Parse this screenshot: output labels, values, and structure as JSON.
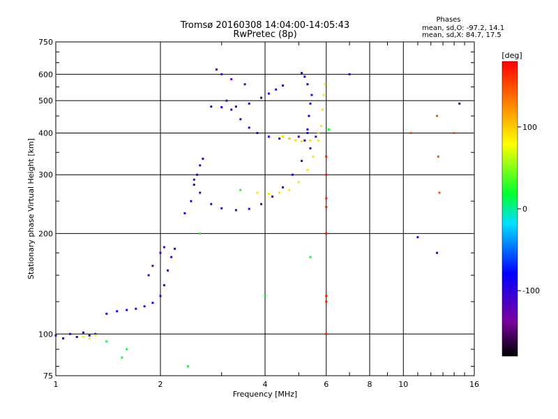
{
  "chart_data": {
    "type": "scatter",
    "title": "Tromsø 20160308 14:04:00-14:05:43",
    "subtitle": "RwPretec (8p)",
    "xlabel": "Frequency [MHz]",
    "ylabel": "Stationary phase Virtual Height [km]",
    "x_scale": "log",
    "y_scale": "log",
    "xlim": [
      1,
      16
    ],
    "ylim": [
      75,
      750
    ],
    "x_ticks": [
      1,
      2,
      4,
      6,
      8,
      10,
      16
    ],
    "y_ticks": [
      75,
      100,
      200,
      300,
      400,
      500,
      600,
      750
    ],
    "grid": true,
    "phase_box": {
      "heading": "Phases",
      "line_o": "mean, sd,O: -97.2, 14.1",
      "line_x": "mean, sd,X:  84.7, 17.5"
    },
    "colorbar": {
      "label": "[deg]",
      "ticks": [
        100,
        0,
        -100
      ],
      "range": [
        -180,
        180
      ]
    },
    "traces": [
      {
        "name": "",
        "color_phase": -97,
        "points": [
          [
            1.0,
            99
          ],
          [
            1.05,
            97
          ],
          [
            1.1,
            100
          ],
          [
            1.15,
            98
          ],
          [
            1.2,
            101
          ],
          [
            1.25,
            99
          ],
          [
            1.3,
            100
          ]
        ]
      },
      {
        "name": "",
        "color_phase": 84,
        "points": [
          [
            1.2,
            98
          ],
          [
            1.25,
            97
          ],
          [
            1.3,
            99
          ]
        ]
      },
      {
        "name": "",
        "color_phase": -100,
        "points": [
          [
            1.4,
            115
          ],
          [
            1.5,
            117
          ],
          [
            1.6,
            118
          ],
          [
            1.7,
            119
          ],
          [
            1.8,
            121
          ],
          [
            1.9,
            124
          ],
          [
            2.0,
            130
          ],
          [
            2.05,
            140
          ],
          [
            2.1,
            155
          ],
          [
            2.15,
            170
          ],
          [
            2.2,
            180
          ]
        ]
      },
      {
        "name": "",
        "color_phase": -110,
        "points": [
          [
            1.85,
            150
          ],
          [
            1.9,
            160
          ],
          [
            2.0,
            175
          ],
          [
            2.05,
            182
          ]
        ]
      },
      {
        "name": "",
        "color_phase": -95,
        "points": [
          [
            2.35,
            230
          ],
          [
            2.45,
            250
          ],
          [
            2.5,
            280
          ],
          [
            2.55,
            300
          ],
          [
            2.6,
            320
          ],
          [
            2.65,
            335
          ]
        ]
      },
      {
        "name": "",
        "color_phase": -105,
        "points": [
          [
            2.5,
            290
          ],
          [
            2.6,
            265
          ],
          [
            2.8,
            245
          ],
          [
            3.0,
            238
          ],
          [
            3.3,
            235
          ],
          [
            3.6,
            237
          ],
          [
            3.9,
            245
          ],
          [
            4.2,
            258
          ],
          [
            4.5,
            275
          ],
          [
            4.8,
            300
          ],
          [
            5.1,
            330
          ],
          [
            5.4,
            360
          ],
          [
            5.6,
            390
          ]
        ]
      },
      {
        "name": "",
        "color_phase": 90,
        "points": [
          [
            3.8,
            265
          ],
          [
            4.1,
            263
          ],
          [
            4.4,
            265
          ],
          [
            4.7,
            270
          ],
          [
            5.0,
            285
          ],
          [
            5.3,
            310
          ],
          [
            5.5,
            340
          ],
          [
            5.7,
            380
          ],
          [
            5.8,
            420
          ],
          [
            5.85,
            470
          ],
          [
            5.9,
            520
          ],
          [
            5.95,
            560
          ]
        ]
      },
      {
        "name": "",
        "color_phase": -100,
        "points": [
          [
            2.8,
            480
          ],
          [
            3.0,
            478
          ],
          [
            3.3,
            480
          ],
          [
            3.6,
            490
          ],
          [
            3.9,
            510
          ],
          [
            4.1,
            525
          ],
          [
            4.3,
            540
          ],
          [
            4.5,
            555
          ]
        ]
      },
      {
        "name": "",
        "color_phase": -100,
        "points": [
          [
            3.1,
            500
          ],
          [
            3.2,
            470
          ],
          [
            3.4,
            440
          ],
          [
            3.6,
            415
          ],
          [
            3.8,
            400
          ],
          [
            4.1,
            390
          ],
          [
            4.4,
            385
          ],
          [
            4.7,
            385
          ],
          [
            5.0,
            390
          ],
          [
            5.3,
            400
          ]
        ]
      },
      {
        "name": "",
        "color_phase": -90,
        "points": [
          [
            5.2,
            380
          ],
          [
            5.3,
            410
          ],
          [
            5.35,
            450
          ],
          [
            5.4,
            490
          ],
          [
            5.45,
            520
          ],
          [
            5.3,
            560
          ],
          [
            5.2,
            590
          ],
          [
            5.1,
            605
          ]
        ]
      },
      {
        "name": "",
        "color_phase": 95,
        "points": [
          [
            4.5,
            390
          ],
          [
            4.7,
            385
          ],
          [
            4.9,
            380
          ],
          [
            5.1,
            378
          ],
          [
            5.4,
            380
          ],
          [
            5.7,
            400
          ]
        ]
      },
      {
        "name": "",
        "color_phase": -120,
        "points": [
          [
            2.9,
            620
          ],
          [
            3.0,
            600
          ],
          [
            3.2,
            580
          ],
          [
            3.5,
            560
          ]
        ]
      },
      {
        "name": "",
        "color_phase": 170,
        "points": [
          [
            6.0,
            100
          ],
          [
            6.0,
            125
          ],
          [
            6.0,
            130
          ],
          [
            6.0,
            200
          ],
          [
            6.0,
            240
          ],
          [
            6.0,
            255
          ],
          [
            6.0,
            300
          ],
          [
            6.0,
            340
          ]
        ]
      },
      {
        "name": "",
        "color_phase": 20,
        "points": [
          [
            1.4,
            95
          ],
          [
            1.55,
            85
          ],
          [
            1.6,
            90
          ],
          [
            2.4,
            80
          ],
          [
            2.6,
            200
          ],
          [
            3.4,
            270
          ],
          [
            4.0,
            130
          ],
          [
            5.4,
            170
          ],
          [
            6.1,
            410
          ]
        ]
      },
      {
        "name": "",
        "color_phase": 150,
        "points": [
          [
            10.5,
            400
          ],
          [
            12.5,
            450
          ],
          [
            12.6,
            340
          ],
          [
            12.7,
            265
          ],
          [
            14.0,
            400
          ]
        ]
      },
      {
        "name": "",
        "color_phase": -100,
        "points": [
          [
            11.0,
            195
          ],
          [
            12.5,
            175
          ],
          [
            14.5,
            490
          ],
          [
            7.0,
            600
          ]
        ]
      }
    ]
  }
}
